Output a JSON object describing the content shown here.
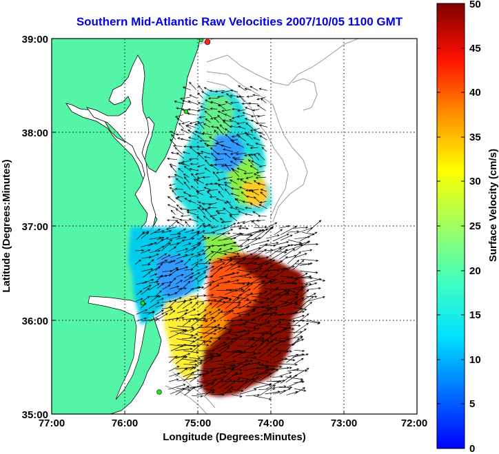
{
  "title": "Southern Mid-Atlantic Raw Velocities 2007/10/05 1100 GMT",
  "xlabel": "Longitude (Degrees:Minutes)",
  "ylabel": "Latitude (Degrees:Minutes)",
  "x_ticks": [
    "77:00",
    "76:00",
    "75:00",
    "74:00",
    "73:00",
    "72:00"
  ],
  "y_ticks": [
    "39:00",
    "38:00",
    "37:00",
    "36:00",
    "35:00"
  ],
  "colorbar": {
    "label": "Surface Velocity (cm/s)",
    "ticks": [
      "0",
      "5",
      "10",
      "15",
      "20",
      "25",
      "30",
      "35",
      "40",
      "45",
      "50"
    ]
  },
  "colors": {
    "land": "#55f5a8",
    "title": "#0000ee",
    "station": "#22dd22",
    "station_active": "#ff2222"
  }
}
